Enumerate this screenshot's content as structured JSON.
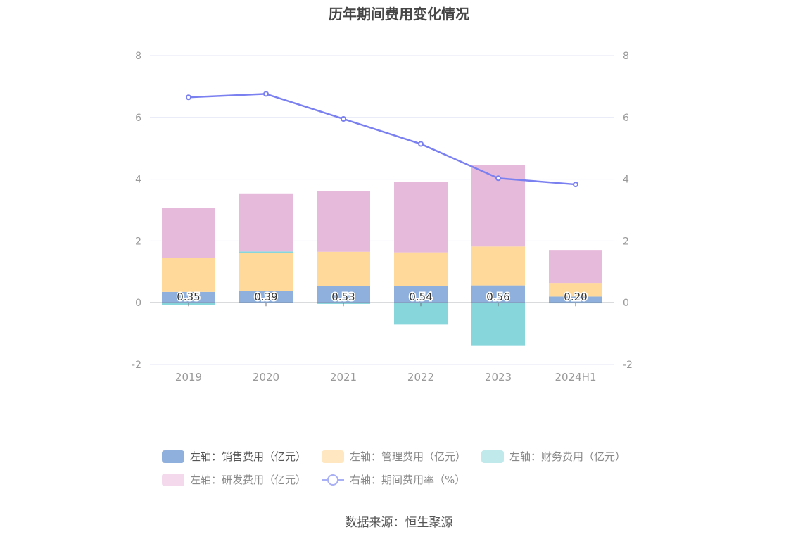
{
  "chart_data": {
    "type": "bar",
    "title": "历年期间费用变化情况",
    "categories": [
      "2019",
      "2020",
      "2021",
      "2022",
      "2023",
      "2024H1"
    ],
    "stacked": true,
    "series": [
      {
        "name": "左轴：销售费用（亿元）",
        "axis": "left",
        "color": "#8fb0dd",
        "values": [
          0.35,
          0.39,
          0.53,
          0.54,
          0.56,
          0.2
        ],
        "labels": [
          "0.35",
          "0.39",
          "0.53",
          "0.54",
          "0.56",
          "0.20"
        ]
      },
      {
        "name": "左轴：管理费用（亿元）",
        "axis": "left",
        "color": "#ffd99a",
        "values": [
          1.1,
          1.22,
          1.12,
          1.09,
          1.26,
          0.44
        ]
      },
      {
        "name": "左轴：财务费用（亿元）",
        "axis": "left",
        "color": "#87d6db",
        "values": [
          -0.07,
          0.05,
          -0.04,
          -0.71,
          -1.4,
          -0.02
        ]
      },
      {
        "name": "左轴：研发费用（亿元）",
        "axis": "left",
        "color": "#e6badb",
        "values": [
          1.61,
          1.88,
          1.96,
          2.28,
          2.64,
          1.07
        ]
      },
      {
        "name": "右轴：期间费用率（%）",
        "axis": "right",
        "type": "line",
        "color": "#7b80f0",
        "values": [
          6.65,
          6.76,
          5.95,
          5.14,
          4.03,
          3.83
        ]
      }
    ],
    "yleft": {
      "min": -2,
      "max": 8,
      "ticks": [
        "-2",
        "0",
        "2",
        "4",
        "6",
        "8"
      ]
    },
    "yright": {
      "min": -2,
      "max": 8,
      "ticks": [
        "-2",
        "0",
        "2",
        "4",
        "6",
        "8"
      ]
    },
    "grid": true,
    "legend_position": "bottom"
  },
  "legend": {
    "items": [
      {
        "label": "左轴：销售费用（亿元）",
        "color": "#8fb0dd"
      },
      {
        "label": "左轴：管理费用（亿元）",
        "color": "#ffe7c2"
      },
      {
        "label": "左轴：财务费用（亿元）",
        "color": "#c0e9ec"
      },
      {
        "label": "左轴：研发费用（亿元）",
        "color": "#f4d8ec"
      },
      {
        "label": "右轴：期间费用率（%）",
        "color": "#aab0f5"
      }
    ]
  },
  "source": "数据来源：恒生聚源"
}
